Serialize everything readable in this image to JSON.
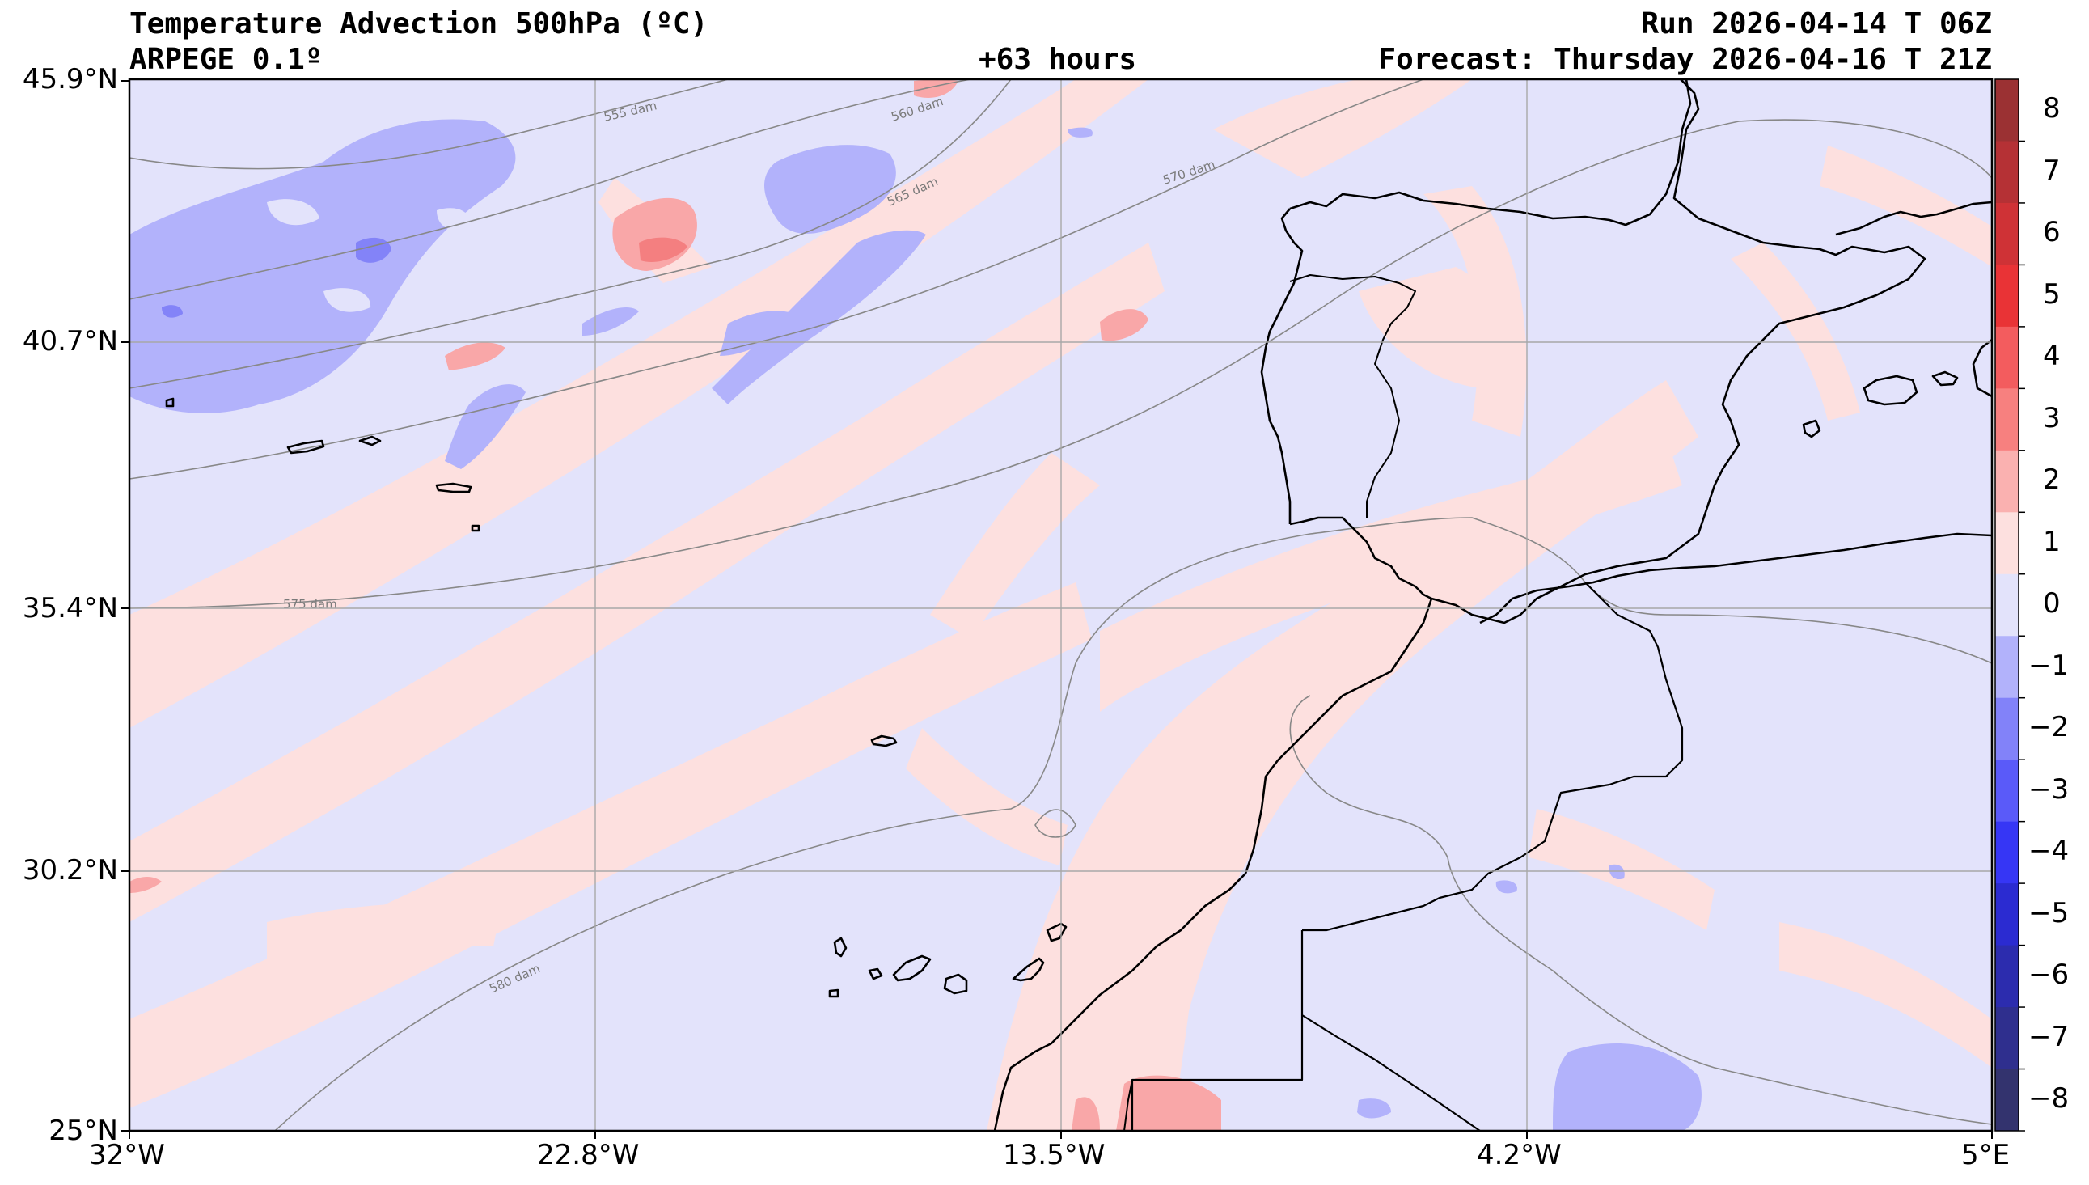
{
  "header": {
    "title": "Temperature Advection  500hPa (ºC)",
    "model": "ARPEGE 0.1º",
    "lead": "+63 hours",
    "run": "Run 2026-04-14 T 06Z",
    "forecast": "Forecast: Thursday 2026-04-16 T 21Z"
  },
  "axes": {
    "lat_labels": [
      "45.9°N",
      "40.7°N",
      "35.4°N",
      "30.2°N",
      "25°N"
    ],
    "lon_labels": [
      "32°W",
      "22.8°W",
      "13.5°W",
      "4.2°W",
      "5°E"
    ]
  },
  "contours": {
    "labels": [
      "555 dam",
      "560 dam",
      "565 dam",
      "570 dam",
      "575 dam",
      "580 dam"
    ]
  },
  "colorbar": {
    "ticks": [
      "8",
      "7",
      "6",
      "5",
      "4",
      "3",
      "2",
      "1",
      "0",
      "−1",
      "−2",
      "−3",
      "−4",
      "−5",
      "−6",
      "−7",
      "−8"
    ],
    "colors": [
      "#9b3133",
      "#b53135",
      "#cf3236",
      "#e93336",
      "#f35c5e",
      "#f7807f",
      "#fab1b0",
      "#fde0df",
      "#e3e3fb",
      "#b2b2fb",
      "#8282f9",
      "#5a5af9",
      "#3636f5",
      "#2b2bd1",
      "#2c2cae",
      "#2f2f8e",
      "#33336e"
    ]
  },
  "colors": {
    "background": "#e3e3fb",
    "warm": "#fde0df",
    "warm_strong": "#f9a7a8",
    "cold": "#b2b2fb",
    "cold_strong": "#8383f8",
    "grid": "#a8a8a8",
    "coast": "#000000",
    "height_contour": "#888888"
  }
}
